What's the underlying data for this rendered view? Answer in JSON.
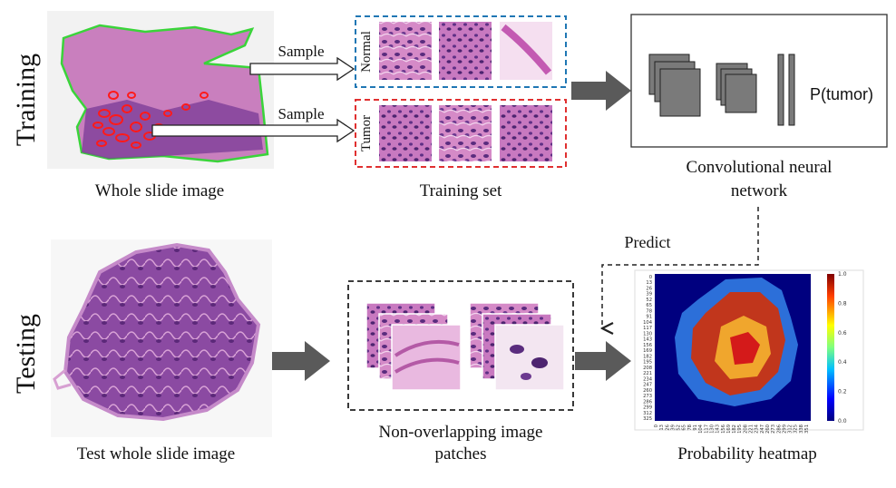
{
  "training": {
    "section_label": "Training",
    "wsi_caption": "Whole slide image",
    "sample_label_top": "Sample",
    "sample_label_bottom": "Sample",
    "normal_label": "Normal",
    "tumor_label": "Tumor",
    "training_set_caption": "Training set",
    "cnn_output_label": "P(tumor)",
    "cnn_caption_line1": "Convolutional neural",
    "cnn_caption_line2": "network"
  },
  "testing": {
    "section_label": "Testing",
    "wsi_caption": "Test whole slide image",
    "patches_caption_line1": "Non-overlapping image",
    "patches_caption_line2": "patches",
    "predict_label": "Predict",
    "heatmap_caption": "Probability heatmap"
  },
  "heatmap": {
    "y_ticks": [
      "0",
      "13",
      "26",
      "39",
      "52",
      "65",
      "78",
      "91",
      "104",
      "117",
      "130",
      "143",
      "156",
      "169",
      "182",
      "195",
      "208",
      "221",
      "234",
      "247",
      "260",
      "273",
      "286",
      "299",
      "312",
      "325"
    ],
    "x_ticks": [
      "0",
      "13",
      "26",
      "39",
      "52",
      "65",
      "78",
      "91",
      "104",
      "117",
      "130",
      "143",
      "156",
      "169",
      "182",
      "195",
      "208",
      "221",
      "234",
      "247",
      "260",
      "273",
      "286",
      "299",
      "312",
      "325",
      "338",
      "351"
    ],
    "colorbar_ticks": [
      "1.0",
      "0.8",
      "0.6",
      "0.4",
      "0.2",
      "0.0"
    ]
  },
  "colors": {
    "normal_box": "#1f77b4",
    "tumor_box": "#e03030",
    "arrow_gray": "#5a5a5a",
    "tissue_pink": "#d98fc6",
    "tissue_purple": "#6b2f86"
  }
}
